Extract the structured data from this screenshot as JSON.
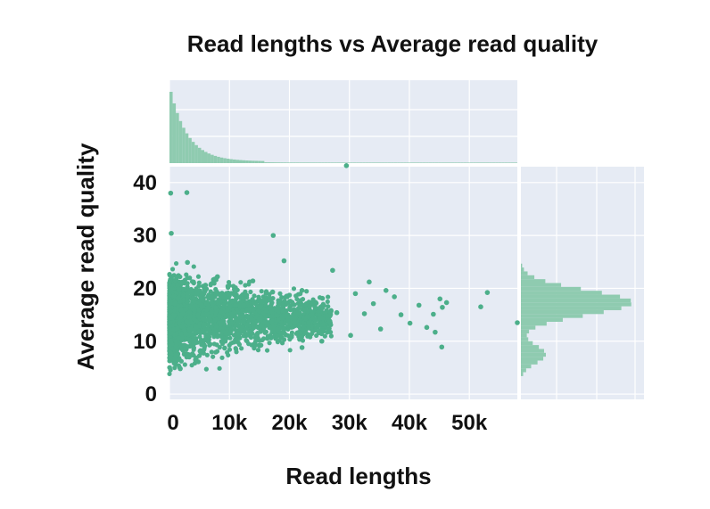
{
  "chart_data": {
    "type": "scatter",
    "title": "Read lengths vs Average read quality",
    "xlabel": "Read lengths",
    "ylabel": "Average read quality",
    "x_ticks": [
      "0",
      "10k",
      "20k",
      "30k",
      "40k",
      "50k"
    ],
    "x_tick_values": [
      0,
      10000,
      20000,
      30000,
      40000,
      50000
    ],
    "y_ticks": [
      "0",
      "10",
      "20",
      "30",
      "40"
    ],
    "y_tick_values": [
      0,
      10,
      20,
      30,
      40
    ],
    "xlim": [
      0,
      58000
    ],
    "ylim": [
      -1,
      43
    ],
    "grid": true,
    "marginal_histograms": true,
    "colors": {
      "points": "#4caf8a",
      "hist": "#8fcbb0",
      "panel": "#e6ebf4",
      "grid": "#ffffff",
      "text": "#111111"
    },
    "points": [
      {
        "x": 1000,
        "y": 17.2
      },
      {
        "x": 1200,
        "y": 9.5
      },
      {
        "x": 1500,
        "y": 22.4
      },
      {
        "x": 1800,
        "y": 4.8
      },
      {
        "x": 2100,
        "y": 15.1
      },
      {
        "x": 2400,
        "y": 19.8
      },
      {
        "x": 2700,
        "y": 11.3
      },
      {
        "x": 3000,
        "y": 24.9
      },
      {
        "x": 3300,
        "y": 7.4
      },
      {
        "x": 3700,
        "y": 16.6
      },
      {
        "x": 4000,
        "y": 21.2
      },
      {
        "x": 4400,
        "y": 12.8
      },
      {
        "x": 4800,
        "y": 6.1
      },
      {
        "x": 5200,
        "y": 18.4
      },
      {
        "x": 5600,
        "y": 14.2
      },
      {
        "x": 6000,
        "y": 20.6
      },
      {
        "x": 6500,
        "y": 9.9
      },
      {
        "x": 7000,
        "y": 17.3
      },
      {
        "x": 7500,
        "y": 12.1
      },
      {
        "x": 8000,
        "y": 22.2
      },
      {
        "x": 8600,
        "y": 15.6
      },
      {
        "x": 9200,
        "y": 8.7
      },
      {
        "x": 9800,
        "y": 18.9
      },
      {
        "x": 10400,
        "y": 13.4
      },
      {
        "x": 11000,
        "y": 20.1
      },
      {
        "x": 11700,
        "y": 10.6
      },
      {
        "x": 12400,
        "y": 16.8
      },
      {
        "x": 13100,
        "y": 14.7
      },
      {
        "x": 13900,
        "y": 21.4
      },
      {
        "x": 14700,
        "y": 11.5
      },
      {
        "x": 15500,
        "y": 17.6
      },
      {
        "x": 16400,
        "y": 13.2
      },
      {
        "x": 17200,
        "y": 19.3
      },
      {
        "x": 18100,
        "y": 15.9
      },
      {
        "x": 19000,
        "y": 12.3
      },
      {
        "x": 20000,
        "y": 18.7
      },
      {
        "x": 21000,
        "y": 14.4
      },
      {
        "x": 22100,
        "y": 19.6
      },
      {
        "x": 23200,
        "y": 12.9
      },
      {
        "x": 24300,
        "y": 16.3
      },
      {
        "x": 25500,
        "y": 18.1
      },
      {
        "x": 26700,
        "y": 13.8
      },
      {
        "x": 27900,
        "y": 15.4
      },
      {
        "x": 2900,
        "y": 38.1
      },
      {
        "x": 17300,
        "y": 30.0
      },
      {
        "x": 300,
        "y": 30.4
      },
      {
        "x": 200,
        "y": 38.0
      },
      {
        "x": 29500,
        "y": 43.2
      },
      {
        "x": 31000,
        "y": 19.0
      },
      {
        "x": 32500,
        "y": 15.2
      },
      {
        "x": 34000,
        "y": 17.1
      },
      {
        "x": 35200,
        "y": 12.3
      },
      {
        "x": 36100,
        "y": 19.6
      },
      {
        "x": 37500,
        "y": 18.4
      },
      {
        "x": 38600,
        "y": 15.0
      },
      {
        "x": 40100,
        "y": 13.4
      },
      {
        "x": 41600,
        "y": 16.8
      },
      {
        "x": 42900,
        "y": 12.6
      },
      {
        "x": 44000,
        "y": 15.1
      },
      {
        "x": 45100,
        "y": 18.0
      },
      {
        "x": 45500,
        "y": 16.4
      },
      {
        "x": 44300,
        "y": 11.7
      },
      {
        "x": 45400,
        "y": 8.9
      },
      {
        "x": 46200,
        "y": 17.3
      },
      {
        "x": 53000,
        "y": 19.2
      },
      {
        "x": 51900,
        "y": 16.5
      },
      {
        "x": 58000,
        "y": 13.5
      },
      {
        "x": 33300,
        "y": 21.2
      },
      {
        "x": 27200,
        "y": 23.4
      },
      {
        "x": 19100,
        "y": 25.2
      },
      {
        "x": 25400,
        "y": 10.0
      },
      {
        "x": 22100,
        "y": 8.8
      },
      {
        "x": 30200,
        "y": 11.1
      }
    ],
    "density_region": "dense cloud from x 0–28k, y ≈ 1–27, centred near y 15"
  }
}
